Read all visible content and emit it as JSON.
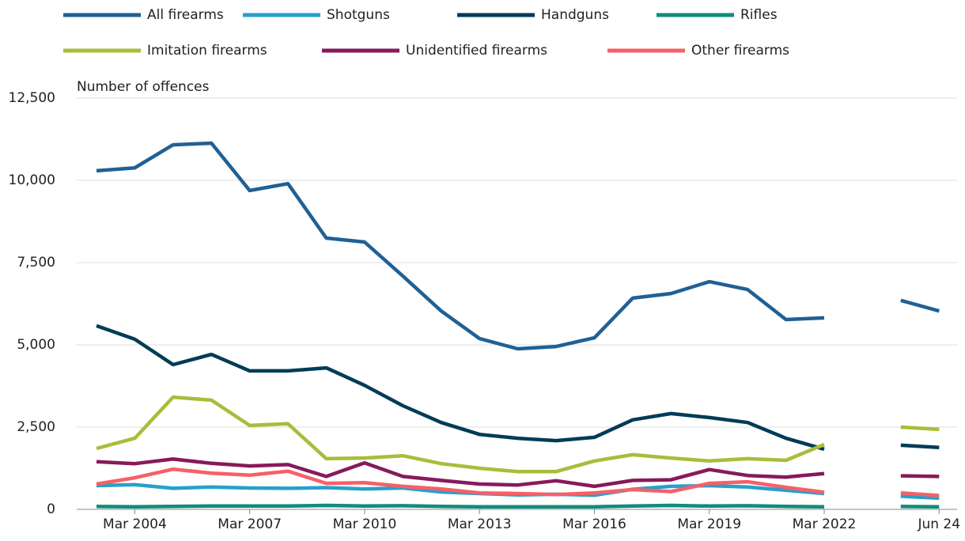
{
  "chart_data": {
    "type": "line",
    "y_label": "Number of offences",
    "categories": [
      null,
      "Mar 2004",
      null,
      null,
      "Mar 2007",
      null,
      null,
      "Mar 2010",
      null,
      null,
      "Mar 2013",
      null,
      null,
      "Mar 2016",
      null,
      null,
      "Mar 2019",
      null,
      null,
      "Mar 2022",
      null,
      null,
      "Jun 24"
    ],
    "series": [
      {
        "name": "All firearms",
        "color": "#206095",
        "values": [
          10290,
          10380,
          11080,
          11130,
          9690,
          9900,
          8245,
          8125,
          7090,
          6030,
          5190,
          4880,
          4950,
          5215,
          6420,
          6560,
          6920,
          6680,
          5770,
          5820,
          null,
          6350,
          6030
        ]
      },
      {
        "name": "Shotguns",
        "color": "#27a0cc",
        "values": [
          720,
          750,
          640,
          680,
          650,
          640,
          660,
          620,
          650,
          530,
          480,
          440,
          460,
          430,
          610,
          700,
          720,
          680,
          580,
          480,
          null,
          400,
          340
        ]
      },
      {
        "name": "Handguns",
        "color": "#003c57",
        "values": [
          5580,
          5170,
          4400,
          4710,
          4210,
          4210,
          4300,
          3770,
          3150,
          2640,
          2280,
          2160,
          2090,
          2190,
          2720,
          2910,
          2790,
          2640,
          2160,
          1830,
          null,
          1950,
          1880
        ]
      },
      {
        "name": "Rifles",
        "color": "#118c7b",
        "values": [
          90,
          80,
          90,
          100,
          100,
          100,
          120,
          100,
          110,
          90,
          80,
          80,
          80,
          80,
          100,
          120,
          100,
          110,
          90,
          80,
          null,
          90,
          80
        ]
      },
      {
        "name": "Imitation firearms",
        "color": "#a8bd3a",
        "values": [
          1850,
          2160,
          3410,
          3320,
          2550,
          2600,
          1540,
          1560,
          1630,
          1390,
          1250,
          1150,
          1150,
          1470,
          1660,
          1560,
          1470,
          1540,
          1490,
          1970,
          null,
          2500,
          2430
        ]
      },
      {
        "name": "Unidentified firearms",
        "color": "#871a5b",
        "values": [
          1450,
          1390,
          1530,
          1400,
          1320,
          1360,
          1000,
          1410,
          1000,
          880,
          770,
          740,
          870,
          700,
          880,
          900,
          1210,
          1030,
          980,
          1090,
          null,
          1020,
          1000
        ]
      },
      {
        "name": "Other firearms",
        "color": "#f66068",
        "values": [
          770,
          960,
          1220,
          1100,
          1040,
          1160,
          790,
          810,
          700,
          620,
          500,
          480,
          450,
          500,
          600,
          540,
          790,
          840,
          670,
          520,
          null,
          500,
          420
        ]
      }
    ],
    "ylim": [
      0,
      12500
    ],
    "yticks": [
      0,
      {
        "value": 2500,
        "label": "2,500"
      },
      {
        "value": 5000,
        "label": "5,000"
      },
      {
        "value": 7500,
        "label": "7,500"
      },
      {
        "value": 10000,
        "label": "10,000"
      },
      {
        "value": 12500,
        "label": "12,500"
      }
    ],
    "grid": true
  }
}
